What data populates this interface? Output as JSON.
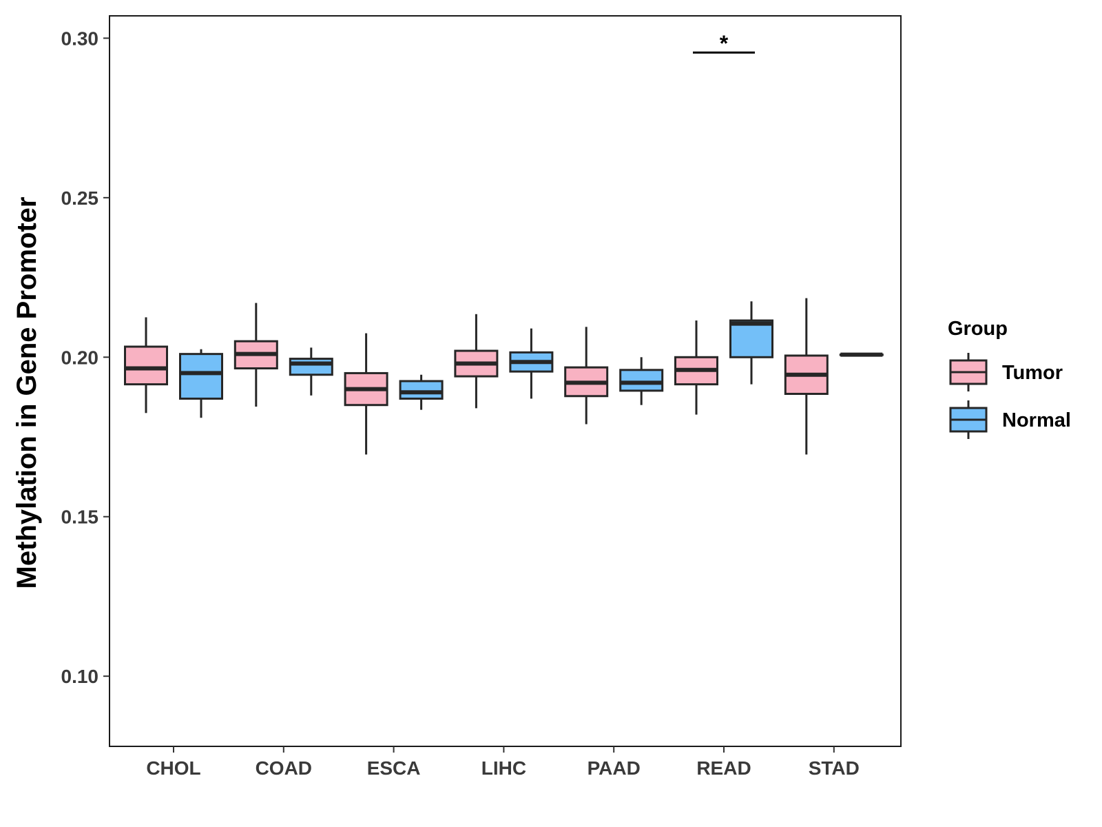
{
  "chart_data": {
    "type": "boxplot",
    "title": "",
    "xlabel": "",
    "ylabel": "Methylation in Gene Promoter",
    "ylim": [
      0.078,
      0.307
    ],
    "yticks": [
      0.1,
      0.15,
      0.2,
      0.25,
      0.3
    ],
    "ytick_labels": [
      "0.10",
      "0.15",
      "0.20",
      "0.25",
      "0.30"
    ],
    "categories": [
      "CHOL",
      "COAD",
      "ESCA",
      "LIHC",
      "PAAD",
      "READ",
      "STAD"
    ],
    "legend": {
      "title": "Group",
      "position": "right",
      "entries": [
        "Tumor",
        "Normal"
      ]
    },
    "colors": {
      "Tumor": "#f8b2c2",
      "Normal": "#73bff8",
      "outline": "#262626"
    },
    "series": [
      {
        "name": "Tumor",
        "boxes": [
          {
            "min": 0.1825,
            "q1": 0.1915,
            "median": 0.1965,
            "q3": 0.2033,
            "max": 0.2125
          },
          {
            "min": 0.1845,
            "q1": 0.1965,
            "median": 0.201,
            "q3": 0.205,
            "max": 0.217
          },
          {
            "min": 0.1695,
            "q1": 0.185,
            "median": 0.19,
            "q3": 0.195,
            "max": 0.2075
          },
          {
            "min": 0.184,
            "q1": 0.194,
            "median": 0.198,
            "q3": 0.202,
            "max": 0.2135
          },
          {
            "min": 0.179,
            "q1": 0.1878,
            "median": 0.192,
            "q3": 0.1968,
            "max": 0.2095
          },
          {
            "min": 0.182,
            "q1": 0.1915,
            "median": 0.196,
            "q3": 0.2,
            "max": 0.2115
          },
          {
            "min": 0.1695,
            "q1": 0.1885,
            "median": 0.1945,
            "q3": 0.2005,
            "max": 0.2185
          }
        ]
      },
      {
        "name": "Normal",
        "boxes": [
          {
            "min": 0.181,
            "q1": 0.187,
            "median": 0.195,
            "q3": 0.201,
            "max": 0.2025
          },
          {
            "min": 0.188,
            "q1": 0.1945,
            "median": 0.198,
            "q3": 0.1995,
            "max": 0.203
          },
          {
            "min": 0.1835,
            "q1": 0.187,
            "median": 0.189,
            "q3": 0.1925,
            "max": 0.1945
          },
          {
            "min": 0.187,
            "q1": 0.1955,
            "median": 0.1985,
            "q3": 0.2015,
            "max": 0.209
          },
          {
            "min": 0.185,
            "q1": 0.1895,
            "median": 0.192,
            "q3": 0.196,
            "max": 0.2
          },
          {
            "min": 0.1915,
            "q1": 0.2,
            "median": 0.2105,
            "q3": 0.2115,
            "max": 0.2175
          },
          {
            "min": 0.2008,
            "q1": 0.2008,
            "median": 0.2008,
            "q3": 0.2008,
            "max": 0.2008
          }
        ]
      }
    ],
    "annotations": [
      {
        "category": "READ",
        "text": "*",
        "y": 0.2955
      }
    ]
  }
}
